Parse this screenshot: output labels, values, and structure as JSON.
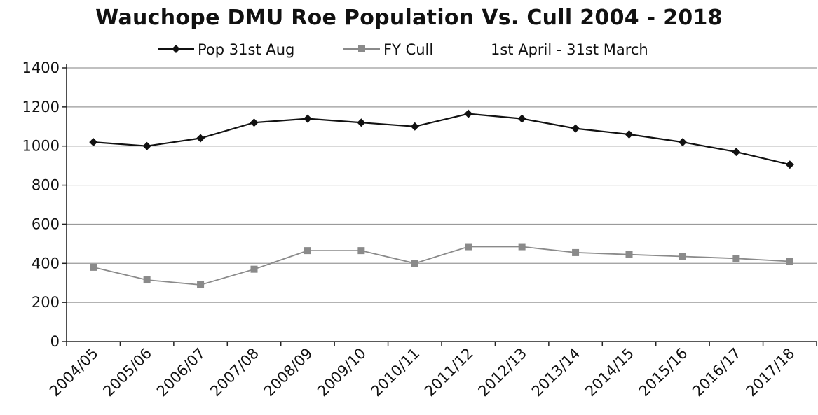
{
  "chart_data": {
    "type": "line",
    "title": "Wauchope DMU Roe Population Vs. Cull 2004 - 2018",
    "xlabel": "",
    "ylabel": "",
    "ylim": [
      0,
      1400
    ],
    "yticks": [
      0,
      200,
      400,
      600,
      800,
      1000,
      1200,
      1400
    ],
    "grid": true,
    "legend_position": "top",
    "legend_note": "1st April - 31st March",
    "categories": [
      "2004/05",
      "2005/06",
      "2006/07",
      "2007/08",
      "2008/09",
      "2009/10",
      "2010/11",
      "2011/12",
      "2012/13",
      "2013/14",
      "2014/15",
      "2015/16",
      "2016/17",
      "2017/18"
    ],
    "series": [
      {
        "name": "Pop 31st Aug",
        "marker": "diamond",
        "color": "#111111",
        "values": [
          1020,
          1000,
          1040,
          1120,
          1140,
          1120,
          1100,
          1165,
          1140,
          1090,
          1060,
          1020,
          970,
          905
        ]
      },
      {
        "name": "FY Cull",
        "marker": "square",
        "color": "#8a8a8a",
        "values": [
          380,
          315,
          290,
          370,
          465,
          465,
          400,
          485,
          485,
          455,
          445,
          435,
          425,
          410
        ]
      }
    ]
  }
}
